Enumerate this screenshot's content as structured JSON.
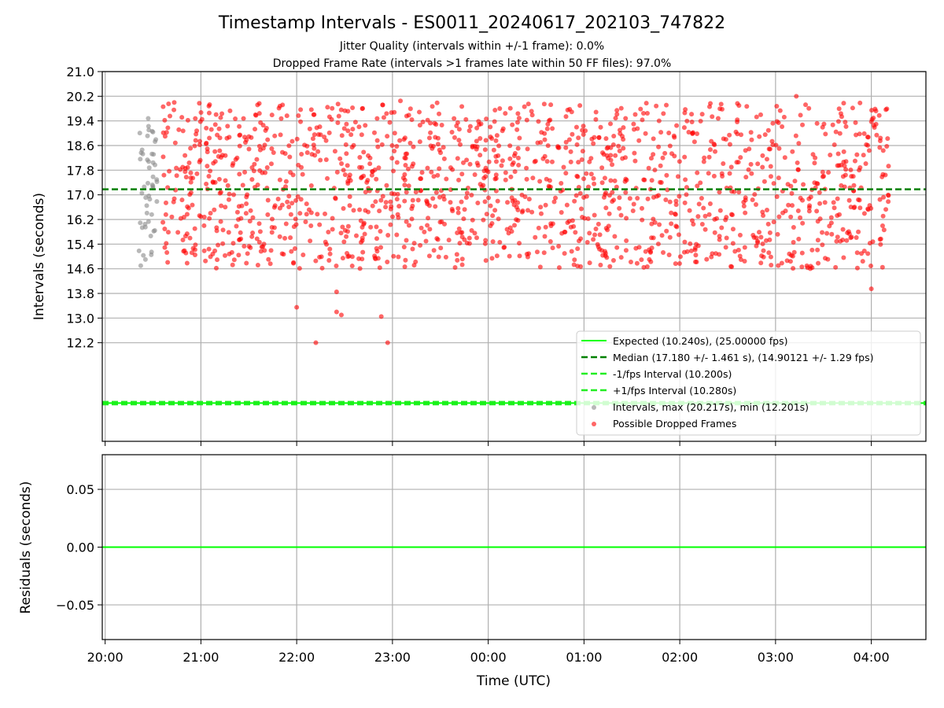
{
  "chart_data": [
    {
      "type": "scatter",
      "title": "Timestamp Intervals - ES0011_20240617_202103_747822",
      "subtitle_lines": [
        "Jitter Quality (intervals within +/-1 frame): 0.0%",
        "Dropped Frame Rate (intervals >1 frames late within 50 FF files): 97.0%"
      ],
      "xlabel": "",
      "ylabel": "Intervals (seconds)",
      "grid": true,
      "legend_placement": "lower-right",
      "ylim": [
        9.0,
        21.0
      ],
      "xlim_hours": [
        19.97,
        28.57
      ],
      "y_tick_labels": [
        "21.0",
        "20.2",
        "19.4",
        "18.6",
        "17.8",
        "17.0",
        "16.2",
        "15.4",
        "14.6",
        "13.8",
        "13.0",
        "12.2"
      ],
      "y_ticks": [
        21.0,
        20.2,
        19.4,
        18.6,
        17.8,
        17.0,
        16.2,
        15.4,
        14.6,
        13.8,
        13.0,
        12.2
      ],
      "x_tick_hours": [
        20,
        21,
        22,
        23,
        24,
        25,
        26,
        27,
        28
      ],
      "reference_lines": [
        {
          "label": "Expected (10.240s), (25.00000 fps)",
          "y": 10.24,
          "style": "solid",
          "color": "#00ff00"
        },
        {
          "label": "Median (17.180 +/- 1.461 s), (14.90121 +/- 1.29 fps)",
          "y": 17.18,
          "style": "dashed",
          "color": "#008000"
        },
        {
          "label": "-1/fps Interval (10.200s)",
          "y": 10.2,
          "style": "dashed",
          "color": "#22ee22"
        },
        {
          "label": "+1/fps Interval (10.280s)",
          "y": 10.28,
          "style": "dashed",
          "color": "#22ee22"
        }
      ],
      "series": [
        {
          "name": "Intervals, max (20.217s), min (12.201s)",
          "color": "#888888",
          "approx_time_range_utc": [
            "20:21",
            "20:34"
          ],
          "approx_y_range": [
            14.7,
            19.5
          ],
          "approx_point_count": 50
        },
        {
          "name": "Possible Dropped Frames",
          "color": "#ff0000",
          "approx_time_range_utc": [
            "20:36",
            "04:11"
          ],
          "approx_y_range": [
            12.2,
            20.2
          ],
          "approx_point_count": 1500,
          "notable_points": [
            {
              "x": "22:00",
              "y": 13.35
            },
            {
              "x": "22:12",
              "y": 12.2
            },
            {
              "x": "22:25",
              "y": 13.85
            },
            {
              "x": "22:25",
              "y": 13.2
            },
            {
              "x": "22:28",
              "y": 13.1
            },
            {
              "x": "22:53",
              "y": 13.05
            },
            {
              "x": "22:57",
              "y": 12.2
            },
            {
              "x": "23:05",
              "y": 20.05
            },
            {
              "x": "03:13",
              "y": 20.2
            },
            {
              "x": "04:00",
              "y": 13.95
            }
          ]
        }
      ]
    },
    {
      "type": "line",
      "xlabel": "Time (UTC)",
      "ylabel": "Residuals (seconds)",
      "grid": true,
      "ylim": [
        -0.08,
        0.08
      ],
      "y_ticks": [
        0.05,
        0.0,
        -0.05
      ],
      "y_tick_labels": [
        "0.05",
        "0.00",
        "−0.05"
      ],
      "x_tick_labels": [
        "20:00",
        "21:00",
        "22:00",
        "23:00",
        "00:00",
        "01:00",
        "02:00",
        "03:00",
        "04:00"
      ],
      "x_tick_hours": [
        20,
        21,
        22,
        23,
        24,
        25,
        26,
        27,
        28
      ],
      "series": [
        {
          "name": "",
          "color": "#00ff00",
          "constant_value": 0.0
        }
      ]
    }
  ]
}
